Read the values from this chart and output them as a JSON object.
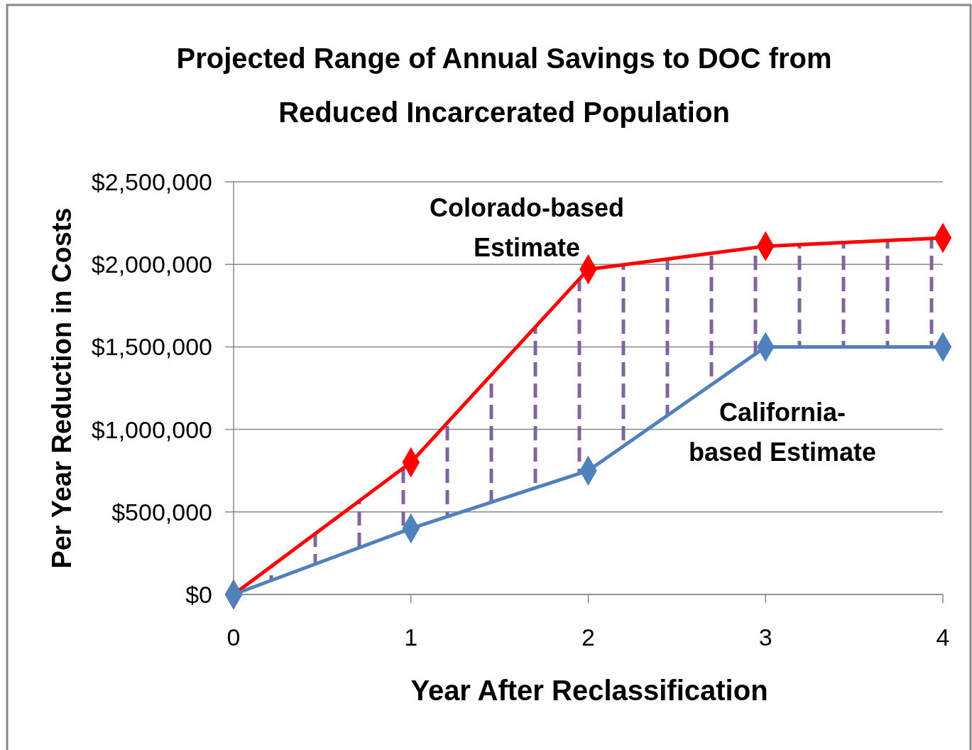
{
  "chart_data": {
    "type": "line",
    "title": "Projected Range of Annual Savings to DOC from Reduced Incarcerated Population",
    "xlabel": "Year After Reclassification",
    "ylabel": "Per Year Reduction in Costs",
    "x": [
      0,
      1,
      2,
      3,
      4
    ],
    "series": [
      {
        "name": "Colorado-based Estimate",
        "color": "#ff0000",
        "values": [
          0,
          800000,
          1970000,
          2110000,
          2160000
        ],
        "lower": [
          0,
          400000,
          750000,
          1500000,
          1500000
        ],
        "upper": [
          0,
          800000,
          1970000,
          2110000,
          2160000
        ]
      },
      {
        "name": "California-based Estimate",
        "color": "#4f81bd",
        "values": [
          0,
          400000,
          750000,
          1500000,
          1500000
        ]
      }
    ],
    "xlim": [
      0,
      4
    ],
    "xticks": [
      0,
      1,
      2,
      3,
      4
    ],
    "ylim": [
      0,
      2500000
    ],
    "yticks": [
      {
        "value": 0,
        "label": "$0"
      },
      {
        "value": 500000,
        "label": "$500,000"
      },
      {
        "value": 1000000,
        "label": "$1,000,000"
      },
      {
        "value": 1500000,
        "label": "$1,500,000"
      },
      {
        "value": 2000000,
        "label": "$2,000,000"
      },
      {
        "value": 2500000,
        "label": "$2,500,000"
      }
    ],
    "grid": "y",
    "marker": "diamond",
    "line_style": "solid"
  }
}
